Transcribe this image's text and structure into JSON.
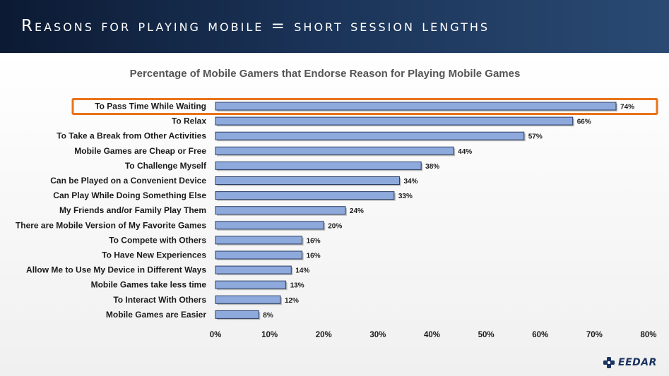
{
  "slide": {
    "title": "Reasons for playing mobile = short session lengths",
    "logo_text": "EEDAR"
  },
  "colors": {
    "bar_fill": "#8ea9dc",
    "bar_stroke": "#2b3f66",
    "highlight": "#e8731a"
  },
  "chart_data": {
    "type": "bar",
    "orientation": "horizontal",
    "title": "Percentage of Mobile Gamers that Endorse Reason for Playing Mobile Games",
    "categories": [
      "To Pass Time While Waiting",
      "To Relax",
      "To Take a Break from Other Activities",
      "Mobile Games are Cheap or Free",
      "To Challenge Myself",
      "Can be Played on a Convenient Device",
      "Can Play While Doing Something Else",
      "My Friends and/or Family Play Them",
      "There are Mobile Version of My Favorite Games",
      "To Compete with Others",
      "To Have New Experiences",
      "Allow Me to Use My Device in Different Ways",
      "Mobile Games take less time",
      "To Interact With Others",
      "Mobile Games are Easier"
    ],
    "values": [
      74,
      66,
      57,
      44,
      38,
      34,
      33,
      24,
      20,
      16,
      16,
      14,
      13,
      12,
      8
    ],
    "value_labels": [
      "74%",
      "66%",
      "57%",
      "44%",
      "38%",
      "34%",
      "33%",
      "24%",
      "20%",
      "16%",
      "16%",
      "14%",
      "13%",
      "12%",
      "8%"
    ],
    "xlim": [
      0,
      80
    ],
    "xticks": [
      0,
      10,
      20,
      30,
      40,
      50,
      60,
      70,
      80
    ],
    "xtick_labels": [
      "0%",
      "10%",
      "20%",
      "30%",
      "40%",
      "50%",
      "60%",
      "70%",
      "80%"
    ],
    "highlighted_category": "To Pass Time While Waiting",
    "grid": false,
    "legend": "none"
  }
}
